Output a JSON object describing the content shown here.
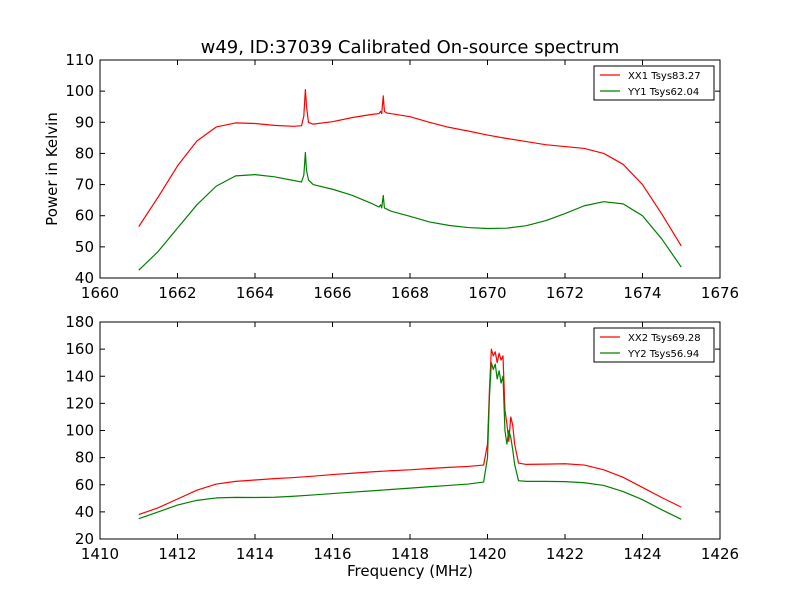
{
  "figure": {
    "title": "w49, ID:37039 Calibrated On-source spectrum"
  },
  "chart_data": [
    {
      "type": "line",
      "ylabel": "Power in Kelvin",
      "xlabel": "",
      "xlim": [
        1660,
        1676
      ],
      "ylim": [
        40,
        110
      ],
      "xticks": [
        1660,
        1662,
        1664,
        1666,
        1668,
        1670,
        1672,
        1674,
        1676
      ],
      "yticks": [
        40,
        50,
        60,
        70,
        80,
        90,
        100,
        110
      ],
      "legend_position": "top-right",
      "grid": false,
      "series": [
        {
          "name": "XX1 Tsys83.27",
          "color": "#ff0000",
          "points": [
            [
              1661.0,
              56.5
            ],
            [
              1661.5,
              66
            ],
            [
              1662.0,
              76
            ],
            [
              1662.5,
              84
            ],
            [
              1663.0,
              88.5
            ],
            [
              1663.5,
              89.8
            ],
            [
              1664.0,
              89.6
            ],
            [
              1664.5,
              89.0
            ],
            [
              1665.0,
              88.7
            ],
            [
              1665.2,
              88.9
            ],
            [
              1665.26,
              92
            ],
            [
              1665.3,
              100.5
            ],
            [
              1665.33,
              95
            ],
            [
              1665.38,
              90
            ],
            [
              1665.5,
              89.4
            ],
            [
              1666.0,
              90.2
            ],
            [
              1666.5,
              91.5
            ],
            [
              1667.0,
              92.5
            ],
            [
              1667.2,
              92.8
            ],
            [
              1667.24,
              93.5
            ],
            [
              1667.27,
              92.8
            ],
            [
              1667.31,
              98.5
            ],
            [
              1667.34,
              93.5
            ],
            [
              1667.4,
              93.0
            ],
            [
              1668.0,
              91.8
            ],
            [
              1668.5,
              90.0
            ],
            [
              1669.0,
              88.4
            ],
            [
              1669.5,
              87.2
            ],
            [
              1670.0,
              85.9
            ],
            [
              1670.5,
              84.8
            ],
            [
              1671.0,
              83.8
            ],
            [
              1671.5,
              82.8
            ],
            [
              1672.0,
              82.2
            ],
            [
              1672.5,
              81.6
            ],
            [
              1673.0,
              80.0
            ],
            [
              1673.5,
              76.5
            ],
            [
              1674.0,
              70.0
            ],
            [
              1674.5,
              60.5
            ],
            [
              1675.0,
              50.3
            ]
          ]
        },
        {
          "name": "YY1 Tsys62.04",
          "color": "#008000",
          "points": [
            [
              1661.0,
              42.5
            ],
            [
              1661.5,
              48.5
            ],
            [
              1662.0,
              56.0
            ],
            [
              1662.5,
              63.5
            ],
            [
              1663.0,
              69.5
            ],
            [
              1663.5,
              72.8
            ],
            [
              1664.0,
              73.2
            ],
            [
              1664.5,
              72.5
            ],
            [
              1665.0,
              71.3
            ],
            [
              1665.2,
              70.8
            ],
            [
              1665.26,
              73.0
            ],
            [
              1665.3,
              80.3
            ],
            [
              1665.33,
              74.5
            ],
            [
              1665.38,
              71.5
            ],
            [
              1665.5,
              70.0
            ],
            [
              1666.0,
              68.5
            ],
            [
              1666.5,
              66.6
            ],
            [
              1667.0,
              64.0
            ],
            [
              1667.2,
              62.8
            ],
            [
              1667.24,
              63.5
            ],
            [
              1667.27,
              62.5
            ],
            [
              1667.31,
              66.5
            ],
            [
              1667.34,
              62.5
            ],
            [
              1667.5,
              61.5
            ],
            [
              1668.0,
              59.8
            ],
            [
              1668.5,
              58.0
            ],
            [
              1669.0,
              56.9
            ],
            [
              1669.5,
              56.2
            ],
            [
              1670.0,
              55.9
            ],
            [
              1670.5,
              56.0
            ],
            [
              1671.0,
              56.8
            ],
            [
              1671.5,
              58.4
            ],
            [
              1672.0,
              60.7
            ],
            [
              1672.5,
              63.2
            ],
            [
              1673.0,
              64.5
            ],
            [
              1673.5,
              63.8
            ],
            [
              1674.0,
              60.0
            ],
            [
              1674.5,
              52.5
            ],
            [
              1675.0,
              43.5
            ]
          ]
        }
      ]
    },
    {
      "type": "line",
      "ylabel": "",
      "xlabel": "Frequency (MHz)",
      "xlim": [
        1410,
        1426
      ],
      "ylim": [
        20,
        180
      ],
      "xticks": [
        1410,
        1412,
        1414,
        1416,
        1418,
        1420,
        1422,
        1424,
        1426
      ],
      "yticks": [
        20,
        40,
        60,
        80,
        100,
        120,
        140,
        160,
        180
      ],
      "legend_position": "top-right",
      "grid": false,
      "series": [
        {
          "name": "XX2 Tsys69.28",
          "color": "#ff0000",
          "points": [
            [
              1411.0,
              38
            ],
            [
              1411.5,
              43
            ],
            [
              1412.0,
              49.5
            ],
            [
              1412.5,
              56
            ],
            [
              1413.0,
              60.5
            ],
            [
              1413.5,
              62.5
            ],
            [
              1414.0,
              63.5
            ],
            [
              1414.5,
              64.5
            ],
            [
              1415.0,
              65.3
            ],
            [
              1415.5,
              66.3
            ],
            [
              1416.0,
              67.5
            ],
            [
              1416.5,
              68.5
            ],
            [
              1417.0,
              69.5
            ],
            [
              1417.5,
              70.3
            ],
            [
              1418.0,
              71.0
            ],
            [
              1418.5,
              72.0
            ],
            [
              1419.0,
              72.8
            ],
            [
              1419.5,
              73.5
            ],
            [
              1419.9,
              74.5
            ],
            [
              1420.0,
              90
            ],
            [
              1420.05,
              130
            ],
            [
              1420.1,
              160
            ],
            [
              1420.15,
              155
            ],
            [
              1420.2,
              158
            ],
            [
              1420.25,
              150
            ],
            [
              1420.3,
              157
            ],
            [
              1420.35,
              152
            ],
            [
              1420.4,
              155
            ],
            [
              1420.45,
              115
            ],
            [
              1420.5,
              105
            ],
            [
              1420.55,
              92
            ],
            [
              1420.6,
              110
            ],
            [
              1420.65,
              104
            ],
            [
              1420.7,
              90
            ],
            [
              1420.8,
              76
            ],
            [
              1421.0,
              75
            ],
            [
              1421.5,
              75.2
            ],
            [
              1422.0,
              75.5
            ],
            [
              1422.5,
              74.5
            ],
            [
              1423.0,
              71.0
            ],
            [
              1423.5,
              65.5
            ],
            [
              1424.0,
              58.0
            ],
            [
              1424.5,
              50.5
            ],
            [
              1425.0,
              43.5
            ]
          ]
        },
        {
          "name": "YY2 Tsys56.94",
          "color": "#008000",
          "points": [
            [
              1411.0,
              35
            ],
            [
              1411.5,
              40
            ],
            [
              1412.0,
              45
            ],
            [
              1412.5,
              48.5
            ],
            [
              1413.0,
              50.3
            ],
            [
              1413.5,
              50.7
            ],
            [
              1414.0,
              50.6
            ],
            [
              1414.5,
              50.8
            ],
            [
              1415.0,
              51.5
            ],
            [
              1415.5,
              52.5
            ],
            [
              1416.0,
              53.5
            ],
            [
              1416.5,
              54.5
            ],
            [
              1417.0,
              55.5
            ],
            [
              1417.5,
              56.5
            ],
            [
              1418.0,
              57.5
            ],
            [
              1418.5,
              58.5
            ],
            [
              1419.0,
              59.5
            ],
            [
              1419.5,
              60.5
            ],
            [
              1419.9,
              62.0
            ],
            [
              1420.0,
              80
            ],
            [
              1420.05,
              125
            ],
            [
              1420.1,
              150
            ],
            [
              1420.15,
              145
            ],
            [
              1420.2,
              149
            ],
            [
              1420.25,
              138
            ],
            [
              1420.3,
              144
            ],
            [
              1420.35,
              135
            ],
            [
              1420.4,
              140
            ],
            [
              1420.45,
              100
            ],
            [
              1420.5,
              90
            ],
            [
              1420.55,
              100
            ],
            [
              1420.6,
              95
            ],
            [
              1420.65,
              86
            ],
            [
              1420.7,
              75
            ],
            [
              1420.8,
              63
            ],
            [
              1421.0,
              62.5
            ],
            [
              1421.5,
              62.5
            ],
            [
              1422.0,
              62.3
            ],
            [
              1422.5,
              61.5
            ],
            [
              1423.0,
              59.5
            ],
            [
              1423.5,
              55.0
            ],
            [
              1424.0,
              49.0
            ],
            [
              1424.5,
              41.5
            ],
            [
              1425.0,
              34.5
            ]
          ]
        }
      ]
    }
  ]
}
